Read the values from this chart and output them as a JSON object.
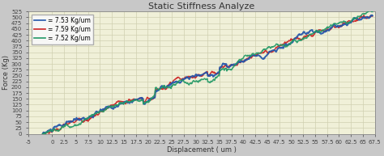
{
  "title": "Static Stiffness Analyze",
  "xlabel": "Displacement ( um )",
  "ylabel": "Force (Kg)",
  "xlim": [
    -3,
    67.5
  ],
  "ylim": [
    0,
    525
  ],
  "legend": [
    "= 7.53 Kg/um",
    "= 7.59 Kg/um",
    "= 7.52 Kg/um"
  ],
  "line_colors": [
    "#2255aa",
    "#cc2222",
    "#229966"
  ],
  "outer_bg_color": "#c8c8c8",
  "plot_bg_color": "#f0f0d8",
  "grid_color": "#d0d0b0",
  "stiffness": [
    7.53,
    7.59,
    7.52
  ],
  "title_fontsize": 8,
  "axis_fontsize": 6,
  "tick_fontsize": 5
}
